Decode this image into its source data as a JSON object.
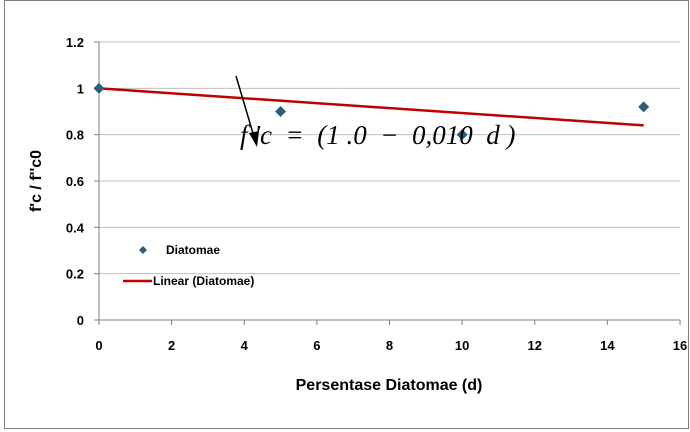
{
  "chart_data": {
    "type": "scatter",
    "title": "",
    "xlabel": "Persentase Diatomae (d)",
    "ylabel": "f'c / f''c0",
    "xlim": [
      0,
      16
    ],
    "ylim": [
      0,
      1.2
    ],
    "x_ticks": [
      "0",
      "2",
      "4",
      "6",
      "8",
      "10",
      "12",
      "14",
      "16"
    ],
    "y_ticks": [
      "0",
      "0.2",
      "0.4",
      "0.6",
      "0.8",
      "1",
      "1.2"
    ],
    "grid": "horizontal",
    "legend_placement": "bottom-left",
    "series": [
      {
        "name": "Diatomae",
        "kind": "scatter",
        "color": "#2d5f7a",
        "marker": "diamond",
        "points": [
          {
            "x": 0,
            "y": 1.0
          },
          {
            "x": 5,
            "y": 0.9
          },
          {
            "x": 10,
            "y": 0.8
          },
          {
            "x": 15,
            "y": 0.92
          }
        ]
      },
      {
        "name": "Linear (Diatomae)",
        "kind": "line",
        "color": "#c00000",
        "points": [
          {
            "x": 0,
            "y": 1.0
          },
          {
            "x": 15,
            "y": 0.84
          }
        ]
      }
    ],
    "annotation": {
      "text": "f 'c  =  (1 .0  −  0,010  d )"
    }
  }
}
